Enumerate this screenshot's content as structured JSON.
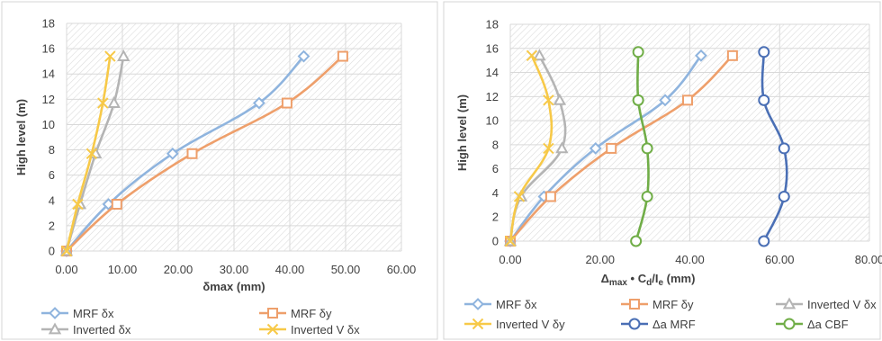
{
  "chart_data": [
    {
      "type": "line",
      "xlabel": "δmax (mm)",
      "ylabel": "High level (m)",
      "xlim": [
        0,
        60
      ],
      "ylim": [
        0,
        18
      ],
      "x_ticks": [
        "0.00",
        "10.00",
        "20.00",
        "30.00",
        "40.00",
        "50.00",
        "60.00"
      ],
      "y_ticks": [
        "0",
        "2",
        "4",
        "6",
        "8",
        "10",
        "12",
        "14",
        "16",
        "18"
      ],
      "grid": "hatched plot area",
      "legend_position": "bottom",
      "series": [
        {
          "name": "MRF δx",
          "color": "#8fb4de",
          "marker": "diamond",
          "points": [
            [
              0,
              0
            ],
            [
              7.5,
              3.7
            ],
            [
              19,
              7.7
            ],
            [
              34.5,
              11.7
            ],
            [
              42.5,
              15.4
            ]
          ]
        },
        {
          "name": "MRF δy",
          "color": "#ee9f6b",
          "marker": "square",
          "points": [
            [
              0,
              0
            ],
            [
              9,
              3.7
            ],
            [
              22.5,
              7.7
            ],
            [
              39.5,
              11.7
            ],
            [
              49.5,
              15.4
            ]
          ]
        },
        {
          "name": "Inverted δx",
          "color": "#b4b4b4",
          "marker": "triangle",
          "points": [
            [
              0,
              0
            ],
            [
              2.4,
              3.7
            ],
            [
              5.2,
              7.7
            ],
            [
              8.5,
              11.7
            ],
            [
              10.2,
              15.4
            ]
          ]
        },
        {
          "name": "Inverted V δx",
          "color": "#f7c948",
          "marker": "x",
          "points": [
            [
              0,
              0
            ],
            [
              2.0,
              3.7
            ],
            [
              4.5,
              7.7
            ],
            [
              6.5,
              11.7
            ],
            [
              7.8,
              15.4
            ]
          ]
        }
      ]
    },
    {
      "type": "line",
      "xlabel_parts": [
        "Δ",
        "max",
        " • C",
        "d",
        "/I",
        "e",
        " (mm)"
      ],
      "ylabel": "High level (m)",
      "xlim": [
        0,
        80
      ],
      "ylim": [
        0,
        18
      ],
      "x_ticks": [
        "0.00",
        "20.00",
        "40.00",
        "60.00",
        "80.00"
      ],
      "y_ticks": [
        "0",
        "2",
        "4",
        "6",
        "8",
        "10",
        "12",
        "14",
        "16",
        "18"
      ],
      "grid": "hatched plot area",
      "legend_position": "bottom",
      "series": [
        {
          "name": "MRF δx",
          "color": "#8fb4de",
          "marker": "diamond",
          "points": [
            [
              0,
              0
            ],
            [
              7.5,
              3.7
            ],
            [
              19,
              7.7
            ],
            [
              34.5,
              11.7
            ],
            [
              42.5,
              15.4
            ]
          ]
        },
        {
          "name": "MRF δy",
          "color": "#ee9f6b",
          "marker": "square",
          "points": [
            [
              0,
              0
            ],
            [
              9,
              3.7
            ],
            [
              22.5,
              7.7
            ],
            [
              39.5,
              11.7
            ],
            [
              49.5,
              15.4
            ]
          ]
        },
        {
          "name": "Inverted V δx",
          "color": "#b4b4b4",
          "marker": "triangle",
          "points": [
            [
              0,
              0
            ],
            [
              2.4,
              3.7
            ],
            [
              11.5,
              7.7
            ],
            [
              11,
              11.7
            ],
            [
              6.5,
              15.4
            ]
          ]
        },
        {
          "name": "Inverted V δy",
          "color": "#f7c948",
          "marker": "x",
          "points": [
            [
              0,
              0
            ],
            [
              2.0,
              3.7
            ],
            [
              8.5,
              7.7
            ],
            [
              8.5,
              11.7
            ],
            [
              4.8,
              15.4
            ]
          ]
        },
        {
          "name": "Δa MRF",
          "color": "#4a6fb5",
          "marker": "circle",
          "points": [
            [
              56.5,
              0
            ],
            [
              61,
              3.7
            ],
            [
              61,
              7.7
            ],
            [
              56.5,
              11.7
            ],
            [
              56.5,
              15.7
            ]
          ]
        },
        {
          "name": "Δa CBF",
          "color": "#70ad47",
          "marker": "circle",
          "points": [
            [
              28,
              0
            ],
            [
              30.5,
              3.7
            ],
            [
              30.5,
              7.7
            ],
            [
              28.5,
              11.7
            ],
            [
              28.5,
              15.7
            ]
          ]
        }
      ]
    }
  ]
}
